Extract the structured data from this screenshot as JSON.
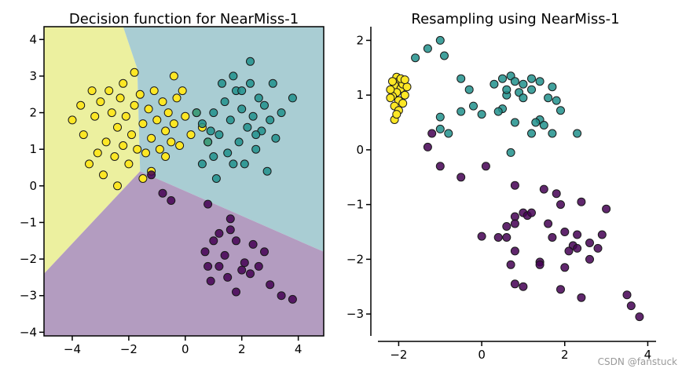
{
  "watermark": "CSDN @fanstuck",
  "colors": {
    "class_0": "#440154",
    "class_1": "#21918c",
    "class_2": "#fde725",
    "region_0": "#b39cc0",
    "region_1": "#a9cdd3",
    "region_2": "#ecf09f"
  },
  "chart_data": [
    {
      "type": "scatter",
      "title": "Decision function for NearMiss-1",
      "xlim": [
        -5,
        4.9
      ],
      "ylim": [
        -4.1,
        4.35
      ],
      "xticks": [
        -4,
        -2,
        0,
        2,
        4
      ],
      "yticks": [
        -4,
        -3,
        -2,
        -1,
        0,
        1,
        2,
        3,
        4
      ],
      "grid": false,
      "decision_regions": [
        {
          "class": 2,
          "vertices": [
            [
              -5,
              4.35
            ],
            [
              -2.2,
              4.35
            ],
            [
              -1.7,
              3.2
            ],
            [
              -1.6,
              0.4
            ],
            [
              -5,
              -2.4
            ]
          ]
        },
        {
          "class": 1,
          "vertices": [
            [
              -2.2,
              4.35
            ],
            [
              4.9,
              4.35
            ],
            [
              4.9,
              -1.8
            ],
            [
              -1.6,
              0.4
            ],
            [
              -1.7,
              3.2
            ]
          ]
        },
        {
          "class": 0,
          "vertices": [
            [
              -5,
              -2.4
            ],
            [
              -1.6,
              0.4
            ],
            [
              4.9,
              -1.8
            ],
            [
              4.9,
              -4.1
            ],
            [
              -5,
              -4.1
            ]
          ]
        }
      ],
      "series": [
        {
          "class": 2,
          "points": [
            [
              -3.2,
              1.9
            ],
            [
              -3.0,
              2.3
            ],
            [
              -2.8,
              1.2
            ],
            [
              -2.6,
              2.0
            ],
            [
              -2.5,
              0.8
            ],
            [
              -2.4,
              1.6
            ],
            [
              -2.3,
              2.4
            ],
            [
              -2.2,
              1.1
            ],
            [
              -2.1,
              1.9
            ],
            [
              -2.0,
              0.6
            ],
            [
              -1.9,
              1.4
            ],
            [
              -1.8,
              2.2
            ],
            [
              -1.7,
              1.0
            ],
            [
              -1.6,
              2.5
            ],
            [
              -1.5,
              1.7
            ],
            [
              -1.4,
              0.9
            ],
            [
              -1.3,
              2.1
            ],
            [
              -1.2,
              1.3
            ],
            [
              -1.1,
              2.6
            ],
            [
              -1.0,
              1.8
            ],
            [
              -0.9,
              1.0
            ],
            [
              -0.8,
              2.3
            ],
            [
              -0.7,
              1.5
            ],
            [
              -0.6,
              2.0
            ],
            [
              -0.5,
              1.2
            ],
            [
              -0.4,
              1.7
            ],
            [
              -0.3,
              2.4
            ],
            [
              -0.2,
              1.1
            ],
            [
              0.0,
              1.9
            ],
            [
              0.2,
              1.4
            ],
            [
              0.4,
              2.0
            ],
            [
              0.6,
              1.6
            ],
            [
              -3.4,
              0.6
            ],
            [
              -3.6,
              1.4
            ],
            [
              -2.9,
              0.3
            ],
            [
              -1.2,
              0.4
            ],
            [
              -3.7,
              2.2
            ],
            [
              -0.4,
              3.0
            ],
            [
              -2.7,
              2.6
            ],
            [
              -1.8,
              3.1
            ],
            [
              -3.1,
              0.9
            ],
            [
              -0.1,
              2.6
            ],
            [
              -4.0,
              1.8
            ],
            [
              -2.2,
              2.8
            ],
            [
              -1.5,
              0.2
            ],
            [
              -0.7,
              0.8
            ],
            [
              0.8,
              1.2
            ],
            [
              -3.3,
              2.6
            ],
            [
              -2.4,
              0.0
            ]
          ]
        },
        {
          "class": 1,
          "points": [
            [
              0.6,
              1.7
            ],
            [
              0.8,
              1.2
            ],
            [
              1.0,
              2.0
            ],
            [
              1.2,
              1.4
            ],
            [
              1.4,
              2.3
            ],
            [
              1.5,
              0.9
            ],
            [
              1.6,
              1.8
            ],
            [
              1.8,
              2.6
            ],
            [
              1.9,
              1.2
            ],
            [
              2.0,
              2.1
            ],
            [
              2.1,
              0.6
            ],
            [
              2.2,
              1.6
            ],
            [
              2.3,
              2.8
            ],
            [
              2.4,
              1.9
            ],
            [
              2.5,
              1.0
            ],
            [
              2.6,
              2.4
            ],
            [
              2.7,
              1.5
            ],
            [
              2.8,
              2.2
            ],
            [
              2.9,
              0.4
            ],
            [
              3.0,
              1.8
            ],
            [
              3.1,
              2.8
            ],
            [
              3.2,
              1.3
            ],
            [
              3.4,
              2.0
            ],
            [
              3.8,
              2.4
            ],
            [
              1.0,
              0.8
            ],
            [
              1.3,
              2.8
            ],
            [
              1.7,
              3.0
            ],
            [
              2.3,
              3.4
            ],
            [
              0.4,
              2.0
            ],
            [
              0.9,
              1.5
            ],
            [
              1.1,
              0.2
            ],
            [
              1.7,
              0.6
            ],
            [
              2.5,
              1.4
            ],
            [
              0.6,
              0.6
            ],
            [
              2.0,
              2.6
            ]
          ]
        },
        {
          "class": 0,
          "points": [
            [
              -1.2,
              0.3
            ],
            [
              -0.8,
              -0.2
            ],
            [
              -0.5,
              -0.4
            ],
            [
              0.8,
              -0.5
            ],
            [
              1.6,
              -0.9
            ],
            [
              1.8,
              -1.5
            ],
            [
              1.2,
              -1.3
            ],
            [
              1.0,
              -1.5
            ],
            [
              0.7,
              -1.8
            ],
            [
              1.4,
              -1.9
            ],
            [
              2.0,
              -2.3
            ],
            [
              1.5,
              -2.5
            ],
            [
              1.2,
              -2.2
            ],
            [
              0.9,
              -2.6
            ],
            [
              1.8,
              -2.9
            ],
            [
              2.1,
              -2.1
            ],
            [
              2.4,
              -1.6
            ],
            [
              2.8,
              -1.8
            ],
            [
              3.0,
              -2.7
            ],
            [
              3.4,
              -3.0
            ],
            [
              3.8,
              -3.1
            ],
            [
              2.6,
              -2.2
            ],
            [
              1.6,
              -1.2
            ],
            [
              2.3,
              -2.4
            ],
            [
              0.8,
              -2.2
            ]
          ]
        }
      ]
    },
    {
      "type": "scatter",
      "title": "Resampling using NearMiss-1",
      "xlim": [
        -2.5,
        4.2
      ],
      "ylim": [
        -3.4,
        2.25
      ],
      "xticks": [
        -2,
        0,
        2,
        4
      ],
      "yticks": [
        -3,
        -2,
        -1,
        0,
        1,
        2
      ],
      "grid": false,
      "series": [
        {
          "class": 2,
          "points": [
            [
              -2.05,
              1.33
            ],
            [
              -2.0,
              1.25
            ],
            [
              -2.1,
              1.18
            ],
            [
              -1.95,
              1.12
            ],
            [
              -2.05,
              1.05
            ],
            [
              -2.15,
              0.98
            ],
            [
              -1.9,
              1.2
            ],
            [
              -2.0,
              0.9
            ],
            [
              -2.1,
              0.8
            ],
            [
              -1.85,
              1.0
            ],
            [
              -2.2,
              1.1
            ],
            [
              -2.0,
              0.72
            ],
            [
              -1.9,
              0.85
            ],
            [
              -2.1,
              0.55
            ],
            [
              -1.95,
              1.3
            ],
            [
              -2.2,
              0.95
            ],
            [
              -1.8,
              1.15
            ],
            [
              -2.05,
              0.65
            ],
            [
              -1.85,
              1.28
            ],
            [
              -2.15,
              1.25
            ]
          ]
        },
        {
          "class": 1,
          "points": [
            [
              -1.0,
              2.0
            ],
            [
              -1.3,
              1.85
            ],
            [
              -0.9,
              1.72
            ],
            [
              -1.6,
              1.68
            ],
            [
              -0.5,
              1.3
            ],
            [
              -0.3,
              1.1
            ],
            [
              -0.2,
              0.8
            ],
            [
              0.3,
              1.2
            ],
            [
              0.5,
              1.3
            ],
            [
              0.7,
              1.35
            ],
            [
              0.8,
              1.25
            ],
            [
              1.0,
              1.2
            ],
            [
              1.2,
              1.3
            ],
            [
              1.4,
              1.25
            ],
            [
              1.2,
              1.1
            ],
            [
              0.6,
              1.0
            ],
            [
              0.9,
              1.05
            ],
            [
              1.0,
              0.95
            ],
            [
              0.5,
              0.75
            ],
            [
              1.6,
              0.95
            ],
            [
              1.7,
              1.15
            ],
            [
              1.8,
              0.9
            ],
            [
              1.9,
              0.72
            ],
            [
              1.4,
              0.55
            ],
            [
              1.5,
              0.45
            ],
            [
              0.8,
              0.5
            ],
            [
              0.4,
              0.7
            ],
            [
              0.0,
              0.65
            ],
            [
              -1.0,
              0.6
            ],
            [
              -0.8,
              0.3
            ],
            [
              -1.0,
              0.38
            ],
            [
              -0.5,
              0.7
            ],
            [
              0.7,
              -0.05
            ],
            [
              1.2,
              0.3
            ],
            [
              1.7,
              0.3
            ],
            [
              2.3,
              0.3
            ],
            [
              1.3,
              0.5
            ],
            [
              0.6,
              1.1
            ]
          ]
        },
        {
          "class": 0,
          "points": [
            [
              -1.2,
              0.3
            ],
            [
              -1.3,
              0.05
            ],
            [
              -1.0,
              -0.3
            ],
            [
              -0.5,
              -0.5
            ],
            [
              0.1,
              -0.3
            ],
            [
              0.8,
              -0.65
            ],
            [
              1.5,
              -0.72
            ],
            [
              1.8,
              -0.8
            ],
            [
              1.9,
              -1.0
            ],
            [
              2.4,
              -0.95
            ],
            [
              3.0,
              -1.08
            ],
            [
              1.0,
              -1.15
            ],
            [
              1.1,
              -1.2
            ],
            [
              1.2,
              -1.15
            ],
            [
              0.8,
              -1.22
            ],
            [
              0.8,
              -1.35
            ],
            [
              0.6,
              -1.4
            ],
            [
              0.6,
              -1.6
            ],
            [
              0.0,
              -1.58
            ],
            [
              0.4,
              -1.6
            ],
            [
              1.6,
              -1.35
            ],
            [
              1.7,
              -1.6
            ],
            [
              2.0,
              -1.5
            ],
            [
              2.3,
              -1.55
            ],
            [
              2.2,
              -1.75
            ],
            [
              2.3,
              -1.8
            ],
            [
              2.1,
              -1.85
            ],
            [
              2.6,
              -1.7
            ],
            [
              2.8,
              -1.8
            ],
            [
              2.6,
              -2.0
            ],
            [
              2.9,
              -1.55
            ],
            [
              0.8,
              -1.85
            ],
            [
              1.4,
              -2.05
            ],
            [
              1.4,
              -2.1
            ],
            [
              0.7,
              -2.1
            ],
            [
              2.0,
              -2.15
            ],
            [
              1.9,
              -2.55
            ],
            [
              0.8,
              -2.45
            ],
            [
              1.0,
              -2.5
            ],
            [
              2.4,
              -2.7
            ],
            [
              3.5,
              -2.65
            ],
            [
              3.6,
              -2.85
            ],
            [
              3.8,
              -3.05
            ]
          ]
        }
      ]
    }
  ]
}
